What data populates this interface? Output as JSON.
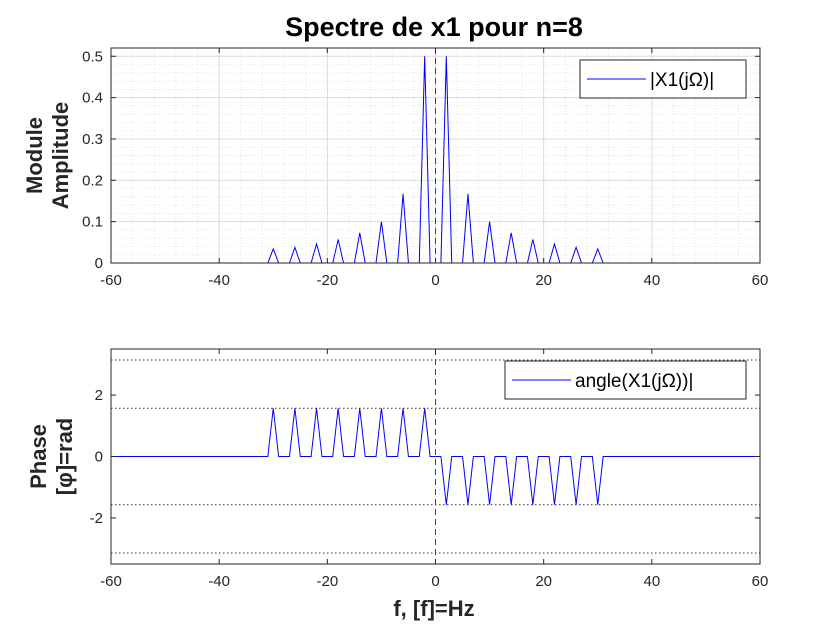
{
  "figure": {
    "title": "Spectre de x1 pour n=8",
    "xlabel": "f, [f]=Hz",
    "line_color": "#0000ff"
  },
  "chart_data": [
    {
      "type": "line",
      "title": "Spectre de x1 pour n=8",
      "ylabel_lines": [
        "Module",
        "Amplitude"
      ],
      "xlim": [
        -60,
        60
      ],
      "ylim": [
        0,
        0.52
      ],
      "xticks": [
        -60,
        -40,
        -20,
        0,
        20,
        40,
        60
      ],
      "xtick_labels": [
        "-60",
        "-40",
        "-20",
        "0",
        "20",
        "40",
        "60"
      ],
      "yticks": [
        0,
        0.1,
        0.2,
        0.3,
        0.4,
        0.5
      ],
      "ytick_labels": [
        "0",
        "0.1",
        "0.2",
        "0.3",
        "0.4",
        "0.5"
      ],
      "grid": "major and minor",
      "legend": {
        "label": "|X1(jΩ)|",
        "placement": "top-right"
      },
      "series": [
        {
          "name": "|X1(jΩ)|",
          "x": [
            -60,
            -31,
            -30,
            -29,
            -27,
            -26,
            -25,
            -23,
            -22,
            -21,
            -19,
            -18,
            -17,
            -15,
            -14,
            -13,
            -11,
            -10,
            -9,
            -7,
            -6,
            -5,
            -3,
            -2,
            -1,
            1,
            2,
            3,
            5,
            6,
            7,
            9,
            10,
            11,
            13,
            14,
            15,
            17,
            18,
            19,
            21,
            22,
            23,
            25,
            26,
            27,
            29,
            30,
            31,
            60
          ],
          "y": [
            0,
            0,
            0.034,
            0,
            0,
            0.038,
            0,
            0,
            0.046,
            0,
            0,
            0.057,
            0,
            0,
            0.073,
            0,
            0,
            0.1,
            0,
            0,
            0.167,
            0,
            0,
            0.5,
            0,
            0,
            0.5,
            0,
            0,
            0.167,
            0,
            0,
            0.1,
            0,
            0,
            0.073,
            0,
            0,
            0.057,
            0,
            0,
            0.046,
            0,
            0,
            0.038,
            0,
            0,
            0.034,
            0,
            0
          ]
        }
      ],
      "vertical_reference": {
        "x": 0
      }
    },
    {
      "type": "line",
      "ylabel_lines": [
        "Phase",
        "[φ]=rad"
      ],
      "xlabel": "f, [f]=Hz",
      "xlim": [
        -60,
        60
      ],
      "ylim": [
        -3.5,
        3.5
      ],
      "xticks": [
        -60,
        -40,
        -20,
        0,
        20,
        40,
        60
      ],
      "xtick_labels": [
        "-60",
        "-40",
        "-20",
        "0",
        "20",
        "40",
        "60"
      ],
      "yticks": [
        -2,
        0,
        2
      ],
      "ytick_labels": [
        "-2",
        "0",
        "2"
      ],
      "dotted_reference_y": [
        3.14159,
        1.5708,
        -1.5708,
        -3.14159
      ],
      "legend": {
        "label": "angle(X1(jΩ))|",
        "placement": "top-right"
      },
      "series": [
        {
          "name": "angle(X1(jΩ))|",
          "x": [
            -60,
            -31,
            -30,
            -29,
            -27,
            -26,
            -25,
            -23,
            -22,
            -21,
            -19,
            -18,
            -17,
            -15,
            -14,
            -13,
            -11,
            -10,
            -9,
            -7,
            -6,
            -5,
            -3,
            -2,
            -1,
            1,
            2,
            3,
            5,
            6,
            7,
            9,
            10,
            11,
            13,
            14,
            15,
            17,
            18,
            19,
            21,
            22,
            23,
            25,
            26,
            27,
            29,
            30,
            31,
            60
          ],
          "y": [
            0,
            0,
            1.5708,
            0,
            0,
            1.5708,
            0,
            0,
            1.5708,
            0,
            0,
            1.5708,
            0,
            0,
            1.5708,
            0,
            0,
            1.5708,
            0,
            0,
            1.5708,
            0,
            0,
            1.5708,
            0,
            0,
            -1.5708,
            0,
            0,
            -1.5708,
            0,
            0,
            -1.5708,
            0,
            0,
            -1.5708,
            0,
            0,
            -1.5708,
            0,
            0,
            -1.5708,
            0,
            0,
            -1.5708,
            0,
            0,
            -1.5708,
            0,
            0
          ]
        }
      ],
      "vertical_reference": {
        "x": 0
      }
    }
  ]
}
